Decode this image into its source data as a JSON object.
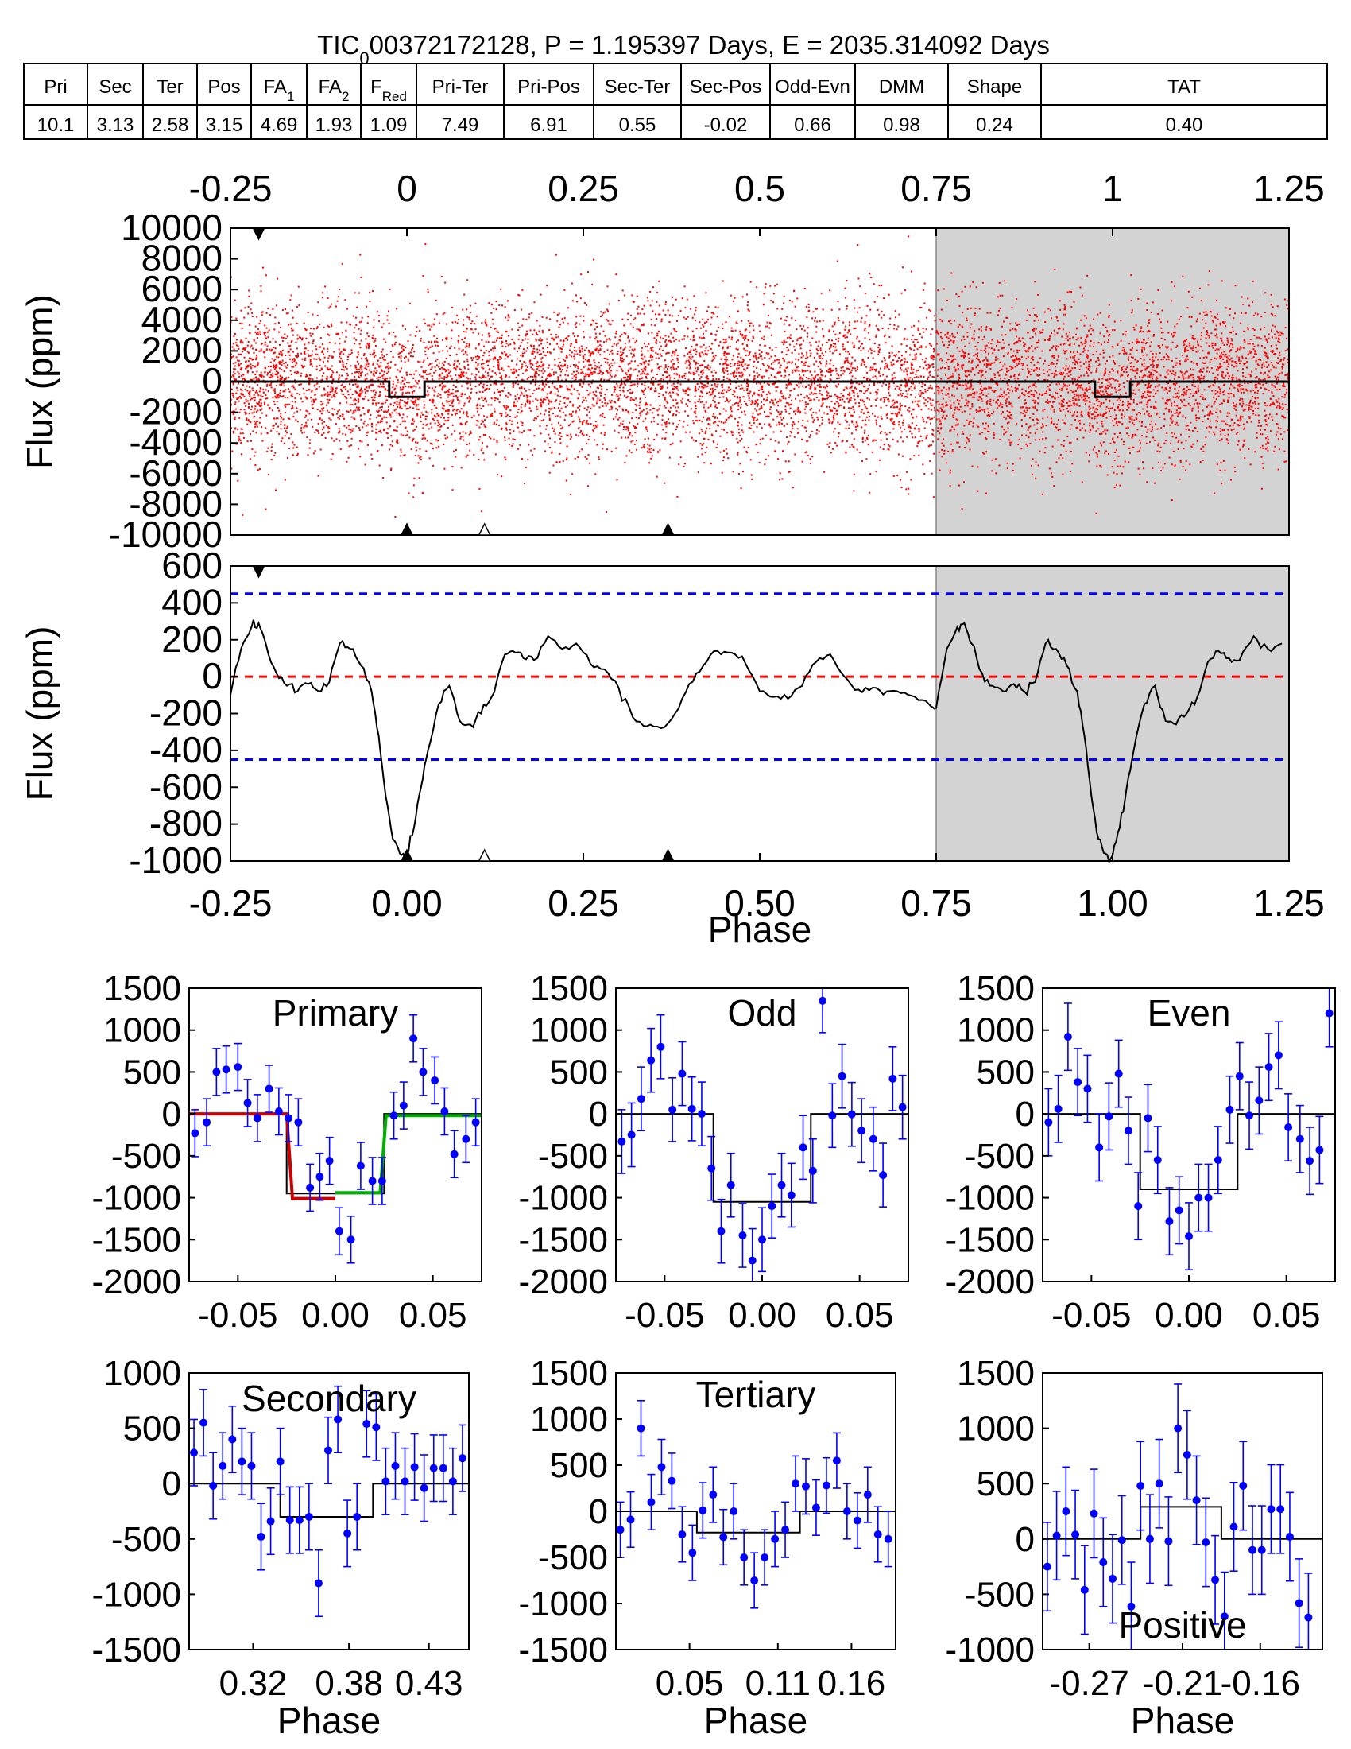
{
  "title": {
    "target": "TIC",
    "sub": "0",
    "rest": "00372172128, P = 1.195397 Days, E = 2035.314092 Days"
  },
  "metrics": [
    {
      "label": "Pri",
      "value": "10.1"
    },
    {
      "label": "Sec",
      "value": "3.13"
    },
    {
      "label": "Ter",
      "value": "2.58"
    },
    {
      "label": "Pos",
      "value": "3.15"
    },
    {
      "label": "FA",
      "sub": "1",
      "value": "4.69"
    },
    {
      "label": "FA",
      "sub": "2",
      "value": "1.93"
    },
    {
      "label": "F",
      "sub": "Red",
      "value": "1.09"
    },
    {
      "label": "Pri-Ter",
      "value": "7.49"
    },
    {
      "label": "Pri-Pos",
      "value": "6.91"
    },
    {
      "label": "Sec-Ter",
      "value": "0.55"
    },
    {
      "label": "Sec-Pos",
      "value": "-0.02"
    },
    {
      "label": "Odd-Evn",
      "value": "0.66"
    },
    {
      "label": "DMM",
      "value": "0.98"
    },
    {
      "label": "Shape",
      "value": "0.24"
    },
    {
      "label": "TAT",
      "value": "0.40"
    }
  ],
  "colors": {
    "points": "#ff0000",
    "binned": "#0000ff",
    "model": "#000000",
    "shade": "#d3d3d3",
    "threshold": "#0000ff",
    "zero": "#ff0000",
    "fit_left": "#cc0000",
    "fit_right": "#00b000"
  },
  "chart_data": [
    {
      "id": "raw",
      "type": "scatter",
      "ylabel": "Flux (ppm)",
      "xlim": [
        -0.25,
        1.25
      ],
      "ylim": [
        -10000,
        10000
      ],
      "xticks": [
        "-0.25",
        "0",
        "0.25",
        "0.5",
        "0.75",
        "1",
        "1.25"
      ],
      "xtick_values": [
        -0.25,
        0,
        0.25,
        0.5,
        0.75,
        1,
        1.25
      ],
      "yticks": [
        "10000",
        "8000",
        "6000",
        "4000",
        "2000",
        "0",
        "-2000",
        "-4000",
        "-6000",
        "-8000",
        "-10000"
      ],
      "ytick_values": [
        10000,
        8000,
        6000,
        4000,
        2000,
        0,
        -2000,
        -4000,
        -6000,
        -8000,
        -10000
      ],
      "shaded_range": [
        0.75,
        1.25
      ],
      "scatter_sigma_ppm": 2500,
      "model_line": {
        "x": [
          -0.25,
          -0.025,
          -0.025,
          0.025,
          0.025,
          0.975,
          0.975,
          1.025,
          1.025,
          1.25
        ],
        "y": [
          0,
          0,
          -1000,
          -1000,
          0,
          0,
          -1000,
          -1000,
          0,
          0
        ]
      },
      "markers": [
        {
          "x": -0.21,
          "type": "filled-down"
        },
        {
          "x": 0.0,
          "type": "filled-up"
        },
        {
          "x": 0.11,
          "type": "open-up"
        },
        {
          "x": 0.37,
          "type": "filled-up"
        }
      ]
    },
    {
      "id": "binned",
      "type": "line",
      "xlabel": "Phase",
      "ylabel": "Flux (ppm)",
      "xlim": [
        -0.25,
        1.25
      ],
      "ylim": [
        -1000,
        600
      ],
      "xticks": [
        "-0.25",
        "0.00",
        "0.25",
        "0.50",
        "0.75",
        "1.00",
        "1.25"
      ],
      "xtick_values": [
        -0.25,
        0,
        0.25,
        0.5,
        0.75,
        1,
        1.25
      ],
      "yticks": [
        "600",
        "400",
        "200",
        "0",
        "-200",
        "-400",
        "-600",
        "-800",
        "-1000"
      ],
      "ytick_values": [
        600,
        400,
        200,
        0,
        -200,
        -400,
        -600,
        -800,
        -1000
      ],
      "shaded_range": [
        0.75,
        1.25
      ],
      "thresholds": [
        450,
        -450
      ],
      "x": [
        -0.25,
        -0.235,
        -0.22,
        -0.21,
        -0.2,
        -0.185,
        -0.17,
        -0.155,
        -0.14,
        -0.125,
        -0.11,
        -0.095,
        -0.08,
        -0.065,
        -0.05,
        -0.04,
        -0.03,
        -0.02,
        -0.01,
        0.0,
        0.01,
        0.02,
        0.03,
        0.045,
        0.06,
        0.075,
        0.09,
        0.105,
        0.12,
        0.135,
        0.15,
        0.165,
        0.18,
        0.2,
        0.22,
        0.24,
        0.26,
        0.28,
        0.3,
        0.32,
        0.34,
        0.36,
        0.38,
        0.4,
        0.42,
        0.44,
        0.46,
        0.48,
        0.5,
        0.52,
        0.54,
        0.56,
        0.58,
        0.6,
        0.62,
        0.64,
        0.66,
        0.68,
        0.7,
        0.72,
        0.74,
        0.75
      ],
      "y": [
        -100,
        150,
        270,
        290,
        180,
        20,
        -50,
        -80,
        -40,
        -80,
        -30,
        180,
        150,
        60,
        -80,
        -320,
        -650,
        -880,
        -960,
        -970,
        -820,
        -600,
        -400,
        -150,
        -50,
        -240,
        -260,
        -200,
        -110,
        80,
        140,
        100,
        90,
        220,
        150,
        180,
        70,
        40,
        -60,
        -220,
        -270,
        -280,
        -200,
        -40,
        60,
        140,
        130,
        70,
        -80,
        -110,
        -120,
        -50,
        80,
        120,
        0,
        -70,
        -60,
        -80,
        -90,
        -110,
        -150,
        -170
      ]
    },
    {
      "id": "primary",
      "label": "Primary",
      "type": "errorbar",
      "xlim": [
        -0.075,
        0.075
      ],
      "ylim": [
        -2000,
        1500
      ],
      "xticks": [
        "-0.05",
        "0.00",
        "0.05"
      ],
      "xtick_values": [
        -0.05,
        0,
        0.05
      ],
      "yticks": [
        "1500",
        "1000",
        "500",
        "0",
        "-500",
        "-1000",
        "-1500",
        "-2000"
      ],
      "ytick_values": [
        1500,
        1000,
        500,
        0,
        -500,
        -1000,
        -1500,
        -2000
      ],
      "x": [
        -0.072,
        -0.066,
        -0.061,
        -0.056,
        -0.05,
        -0.045,
        -0.04,
        -0.034,
        -0.029,
        -0.024,
        -0.019,
        -0.013,
        -0.008,
        -0.003,
        0.002,
        0.008,
        0.013,
        0.019,
        0.024,
        0.03,
        0.035,
        0.04,
        0.045,
        0.051,
        0.056,
        0.061,
        0.067,
        0.072
      ],
      "y": [
        -230,
        -100,
        500,
        530,
        560,
        130,
        -50,
        300,
        30,
        -50,
        -100,
        -880,
        -750,
        -560,
        -1400,
        -1500,
        -620,
        -800,
        -800,
        -20,
        100,
        900,
        500,
        400,
        30,
        -480,
        -300,
        -100
      ],
      "err": [
        280,
        280,
        280,
        280,
        280,
        280,
        280,
        280,
        280,
        280,
        280,
        280,
        280,
        280,
        280,
        280,
        280,
        280,
        280,
        280,
        280,
        280,
        280,
        280,
        280,
        280,
        280,
        280
      ],
      "model": {
        "x": [
          -0.075,
          -0.025,
          -0.025,
          0.025,
          0.025,
          0.075
        ],
        "y": [
          0,
          0,
          -950,
          -950,
          0,
          0
        ]
      },
      "fit_left": {
        "x": [
          -0.075,
          -0.025,
          -0.022,
          0.0
        ],
        "y": [
          0,
          0,
          -1010,
          -1010
        ]
      },
      "fit_right": {
        "x": [
          0.0,
          0.023,
          0.026,
          0.075
        ],
        "y": [
          -940,
          -940,
          -20,
          -20
        ]
      }
    },
    {
      "id": "odd",
      "label": "Odd",
      "type": "errorbar",
      "xlim": [
        -0.075,
        0.075
      ],
      "ylim": [
        -2000,
        1500
      ],
      "xticks": [
        "-0.05",
        "0.00",
        "0.05"
      ],
      "xtick_values": [
        -0.05,
        0,
        0.05
      ],
      "yticks": [
        "1500",
        "1000",
        "500",
        "0",
        "-500",
        "-1000",
        "-1500",
        "-2000"
      ],
      "ytick_values": [
        1500,
        1000,
        500,
        0,
        -500,
        -1000,
        -1500,
        -2000
      ],
      "x": [
        -0.072,
        -0.067,
        -0.062,
        -0.057,
        -0.052,
        -0.046,
        -0.041,
        -0.036,
        -0.031,
        -0.026,
        -0.021,
        -0.016,
        -0.01,
        -0.005,
        0.0,
        0.005,
        0.01,
        0.015,
        0.021,
        0.026,
        0.031,
        0.036,
        0.041,
        0.046,
        0.051,
        0.057,
        0.062,
        0.067,
        0.072
      ],
      "y": [
        -330,
        -250,
        180,
        640,
        800,
        50,
        480,
        60,
        0,
        -650,
        -1400,
        -850,
        -1450,
        -1750,
        -1500,
        -1100,
        -850,
        -970,
        -400,
        -680,
        1350,
        -20,
        450,
        -5,
        -200,
        -300,
        -730,
        420,
        80
      ],
      "err": [
        380,
        380,
        380,
        380,
        380,
        380,
        380,
        380,
        380,
        380,
        380,
        380,
        380,
        380,
        380,
        380,
        380,
        380,
        380,
        380,
        380,
        380,
        380,
        380,
        380,
        380,
        380,
        380,
        380
      ],
      "model": {
        "x": [
          -0.075,
          -0.025,
          -0.025,
          0.025,
          0.025,
          0.075
        ],
        "y": [
          0,
          0,
          -1050,
          -1050,
          0,
          0
        ]
      }
    },
    {
      "id": "even",
      "label": "Even",
      "type": "errorbar",
      "xlim": [
        -0.075,
        0.075
      ],
      "ylim": [
        -2000,
        1500
      ],
      "xticks": [
        "-0.05",
        "0.00",
        "0.05"
      ],
      "xtick_values": [
        -0.05,
        0,
        0.05
      ],
      "yticks": [
        "1500",
        "1000",
        "500",
        "0",
        "-500",
        "-1000",
        "-1500",
        "-2000"
      ],
      "ytick_values": [
        1500,
        1000,
        500,
        0,
        -500,
        -1000,
        -1500,
        -2000
      ],
      "x": [
        -0.072,
        -0.067,
        -0.062,
        -0.057,
        -0.052,
        -0.046,
        -0.041,
        -0.036,
        -0.031,
        -0.026,
        -0.021,
        -0.016,
        -0.01,
        -0.005,
        0.0,
        0.005,
        0.01,
        0.015,
        0.021,
        0.026,
        0.031,
        0.036,
        0.041,
        0.046,
        0.051,
        0.057,
        0.062,
        0.067,
        0.072
      ],
      "y": [
        -100,
        60,
        920,
        380,
        300,
        -400,
        -30,
        480,
        -200,
        -1100,
        -50,
        -550,
        -1280,
        -1150,
        -1460,
        -1000,
        -1000,
        -550,
        50,
        450,
        -20,
        160,
        560,
        700,
        -160,
        -300,
        -560,
        -430,
        1200
      ],
      "err": [
        400,
        400,
        400,
        400,
        400,
        400,
        400,
        400,
        400,
        400,
        400,
        400,
        400,
        400,
        400,
        400,
        400,
        400,
        400,
        400,
        400,
        400,
        400,
        400,
        400,
        400,
        400,
        400,
        400
      ],
      "model": {
        "x": [
          -0.075,
          -0.025,
          -0.025,
          0.025,
          0.025,
          0.075
        ],
        "y": [
          0,
          0,
          -900,
          -900,
          0,
          0
        ]
      }
    },
    {
      "id": "secondary",
      "label": "Secondary",
      "type": "errorbar",
      "xlabel": "Phase",
      "xlim": [
        0.28,
        0.455
      ],
      "ylim": [
        -1500,
        1000
      ],
      "xticks": [
        "0.32",
        "0.38",
        "0.43"
      ],
      "xtick_values": [
        0.32,
        0.38,
        0.43
      ],
      "yticks": [
        "1000",
        "500",
        "0",
        "-500",
        "-1000",
        "-1500"
      ],
      "ytick_values": [
        1000,
        500,
        0,
        -500,
        -1000,
        -1500
      ],
      "x": [
        0.283,
        0.289,
        0.295,
        0.301,
        0.307,
        0.313,
        0.319,
        0.325,
        0.331,
        0.337,
        0.343,
        0.349,
        0.355,
        0.361,
        0.367,
        0.373,
        0.379,
        0.385,
        0.391,
        0.397,
        0.403,
        0.409,
        0.415,
        0.421,
        0.427,
        0.433,
        0.439,
        0.445,
        0.451
      ],
      "y": [
        280,
        550,
        -20,
        160,
        400,
        200,
        160,
        -480,
        -340,
        200,
        -330,
        -330,
        -300,
        -900,
        300,
        580,
        -450,
        -300,
        540,
        510,
        20,
        160,
        20,
        150,
        -40,
        140,
        140,
        20,
        230
      ],
      "err": [
        300,
        300,
        300,
        300,
        300,
        300,
        300,
        300,
        300,
        300,
        300,
        300,
        300,
        300,
        300,
        300,
        300,
        300,
        300,
        300,
        300,
        300,
        300,
        300,
        300,
        300,
        300,
        300,
        300
      ],
      "model": {
        "x": [
          0.28,
          0.337,
          0.337,
          0.395,
          0.395,
          0.455
        ],
        "y": [
          0,
          0,
          -300,
          -300,
          0,
          0
        ]
      }
    },
    {
      "id": "tertiary",
      "label": "Tertiary",
      "type": "errorbar",
      "xlabel": "Phase",
      "xlim": [
        0.0,
        0.19
      ],
      "ylim": [
        -1500,
        1500
      ],
      "xticks": [
        "0.05",
        "0.11",
        "0.16"
      ],
      "xtick_values": [
        0.05,
        0.11,
        0.16
      ],
      "yticks": [
        "1500",
        "1000",
        "500",
        "0",
        "-500",
        "-1000",
        "-1500"
      ],
      "ytick_values": [
        1500,
        1000,
        500,
        0,
        -500,
        -1000,
        -1500
      ],
      "x": [
        0.003,
        0.01,
        0.017,
        0.024,
        0.031,
        0.038,
        0.045,
        0.052,
        0.059,
        0.066,
        0.073,
        0.08,
        0.087,
        0.094,
        0.101,
        0.108,
        0.115,
        0.122,
        0.129,
        0.136,
        0.143,
        0.15,
        0.157,
        0.164,
        0.171,
        0.178,
        0.185
      ],
      "y": [
        -200,
        -90,
        900,
        100,
        480,
        330,
        -250,
        -450,
        10,
        180,
        -280,
        0,
        -500,
        -750,
        -500,
        -300,
        -200,
        300,
        270,
        40,
        280,
        550,
        0,
        -100,
        180,
        -250,
        -300
      ],
      "err": [
        300,
        300,
        300,
        300,
        300,
        300,
        300,
        300,
        300,
        300,
        300,
        300,
        300,
        300,
        300,
        300,
        300,
        300,
        300,
        300,
        300,
        300,
        300,
        300,
        300,
        300,
        300
      ],
      "model": {
        "x": [
          0.0,
          0.055,
          0.055,
          0.125,
          0.125,
          0.19
        ],
        "y": [
          0,
          0,
          -230,
          -230,
          0,
          0
        ]
      }
    },
    {
      "id": "positive",
      "label": "Positive",
      "type": "errorbar",
      "xlabel": "Phase",
      "xlim": [
        -0.3,
        -0.12
      ],
      "ylim": [
        -1000,
        1500
      ],
      "xticks": [
        "-0.27",
        "-0.21",
        "-0.16"
      ],
      "xtick_values": [
        -0.27,
        -0.21,
        -0.16
      ],
      "yticks": [
        "1500",
        "1000",
        "500",
        "0",
        "-500",
        "-1000"
      ],
      "ytick_values": [
        1500,
        1000,
        500,
        0,
        -500,
        -1000
      ],
      "x": [
        -0.297,
        -0.291,
        -0.285,
        -0.279,
        -0.273,
        -0.267,
        -0.261,
        -0.255,
        -0.249,
        -0.243,
        -0.237,
        -0.231,
        -0.225,
        -0.219,
        -0.213,
        -0.207,
        -0.201,
        -0.195,
        -0.189,
        -0.183,
        -0.177,
        -0.171,
        -0.165,
        -0.159,
        -0.153,
        -0.147,
        -0.141,
        -0.135,
        -0.129
      ],
      "y": [
        -250,
        30,
        250,
        40,
        -460,
        230,
        -210,
        -360,
        -10,
        -610,
        480,
        0,
        500,
        -20,
        1000,
        760,
        350,
        -30,
        -370,
        -700,
        110,
        480,
        -100,
        -100,
        270,
        270,
        20,
        -580,
        -710
      ],
      "err": [
        400,
        400,
        400,
        400,
        400,
        400,
        400,
        400,
        400,
        400,
        400,
        400,
        400,
        400,
        400,
        400,
        400,
        400,
        400,
        400,
        400,
        400,
        400,
        400,
        400,
        400,
        400,
        400,
        400
      ],
      "model": {
        "x": [
          -0.3,
          -0.237,
          -0.237,
          -0.185,
          -0.185,
          -0.12
        ],
        "y": [
          0,
          0,
          290,
          290,
          0,
          0
        ]
      }
    }
  ]
}
